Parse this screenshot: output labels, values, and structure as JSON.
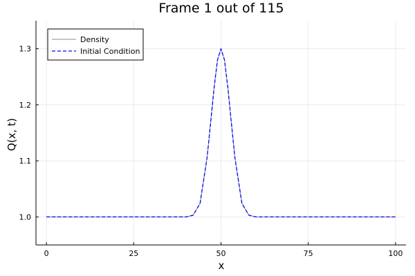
{
  "chart_data": {
    "type": "line",
    "title": "Frame 1 out of 115",
    "xlabel": "x",
    "ylabel": "Q(x, t)",
    "xlim": [
      -3,
      103
    ],
    "ylim": [
      0.95,
      1.35
    ],
    "xticks": [
      0,
      25,
      50,
      75,
      100
    ],
    "yticks": [
      1.0,
      1.1,
      1.2,
      1.3
    ],
    "xtick_labels": [
      "0",
      "25",
      "50",
      "75",
      "100"
    ],
    "ytick_labels": [
      "1.0",
      "1.1",
      "1.2",
      "1.3"
    ],
    "grid": true,
    "legend_position": "top-left",
    "series": [
      {
        "name": "Density",
        "style": "solid",
        "color": "#8c8c8c",
        "x": [
          0,
          5,
          10,
          15,
          20,
          25,
          30,
          35,
          40,
          42,
          44,
          46,
          47,
          48,
          49,
          50,
          51,
          52,
          53,
          54,
          56,
          58,
          60,
          65,
          70,
          75,
          80,
          85,
          90,
          95,
          100
        ],
        "values": [
          1.0,
          1.0,
          1.0,
          1.0,
          1.0,
          1.0,
          1.0,
          1.0,
          1.0,
          1.003,
          1.024,
          1.105,
          1.166,
          1.229,
          1.28,
          1.3,
          1.28,
          1.229,
          1.166,
          1.105,
          1.024,
          1.003,
          1.0,
          1.0,
          1.0,
          1.0,
          1.0,
          1.0,
          1.0,
          1.0,
          1.0
        ]
      },
      {
        "name": "Initial Condition",
        "style": "dashed",
        "color": "#0000ff",
        "x": [
          0,
          5,
          10,
          15,
          20,
          25,
          30,
          35,
          40,
          42,
          44,
          46,
          47,
          48,
          49,
          50,
          51,
          52,
          53,
          54,
          56,
          58,
          60,
          65,
          70,
          75,
          80,
          85,
          90,
          95,
          100
        ],
        "values": [
          1.0,
          1.0,
          1.0,
          1.0,
          1.0,
          1.0,
          1.0,
          1.0,
          1.0,
          1.003,
          1.024,
          1.105,
          1.166,
          1.229,
          1.28,
          1.3,
          1.28,
          1.229,
          1.166,
          1.105,
          1.024,
          1.003,
          1.0,
          1.0,
          1.0,
          1.0,
          1.0,
          1.0,
          1.0,
          1.0,
          1.0
        ]
      }
    ]
  }
}
